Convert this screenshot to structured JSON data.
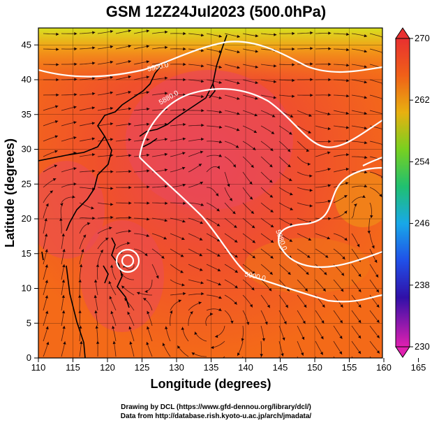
{
  "title": "GSM 12Z24Jul2023 (500.0hPa)",
  "xlabel": "Longitude (degrees)",
  "ylabel": "Latitude  (degrees)",
  "xticks": [
    "110",
    "115",
    "120",
    "125",
    "130",
    "135",
    "140",
    "145",
    "150",
    "155",
    "160",
    "165"
  ],
  "yticks": [
    "0",
    "5",
    "10",
    "15",
    "20",
    "25",
    "30",
    "35",
    "40",
    "45"
  ],
  "colorbar": {
    "labels": [
      "270",
      "262",
      "254",
      "246",
      "238",
      "230"
    ],
    "min": 230,
    "max": 270
  },
  "contour_labels": [
    "5900.0",
    "5880.0",
    "5880.0",
    "5900.0"
  ],
  "credits": {
    "line1": "Drawing by DCL (https://www.gfd-dennou.org/library/dcl/)",
    "line2": "Data from http://database.rish.kyoto-u.ac.jp/arch/jmadata/"
  },
  "colors": {
    "warm": "#ff3a2a",
    "hot": "#f04060",
    "accent": "#ffffff"
  }
}
